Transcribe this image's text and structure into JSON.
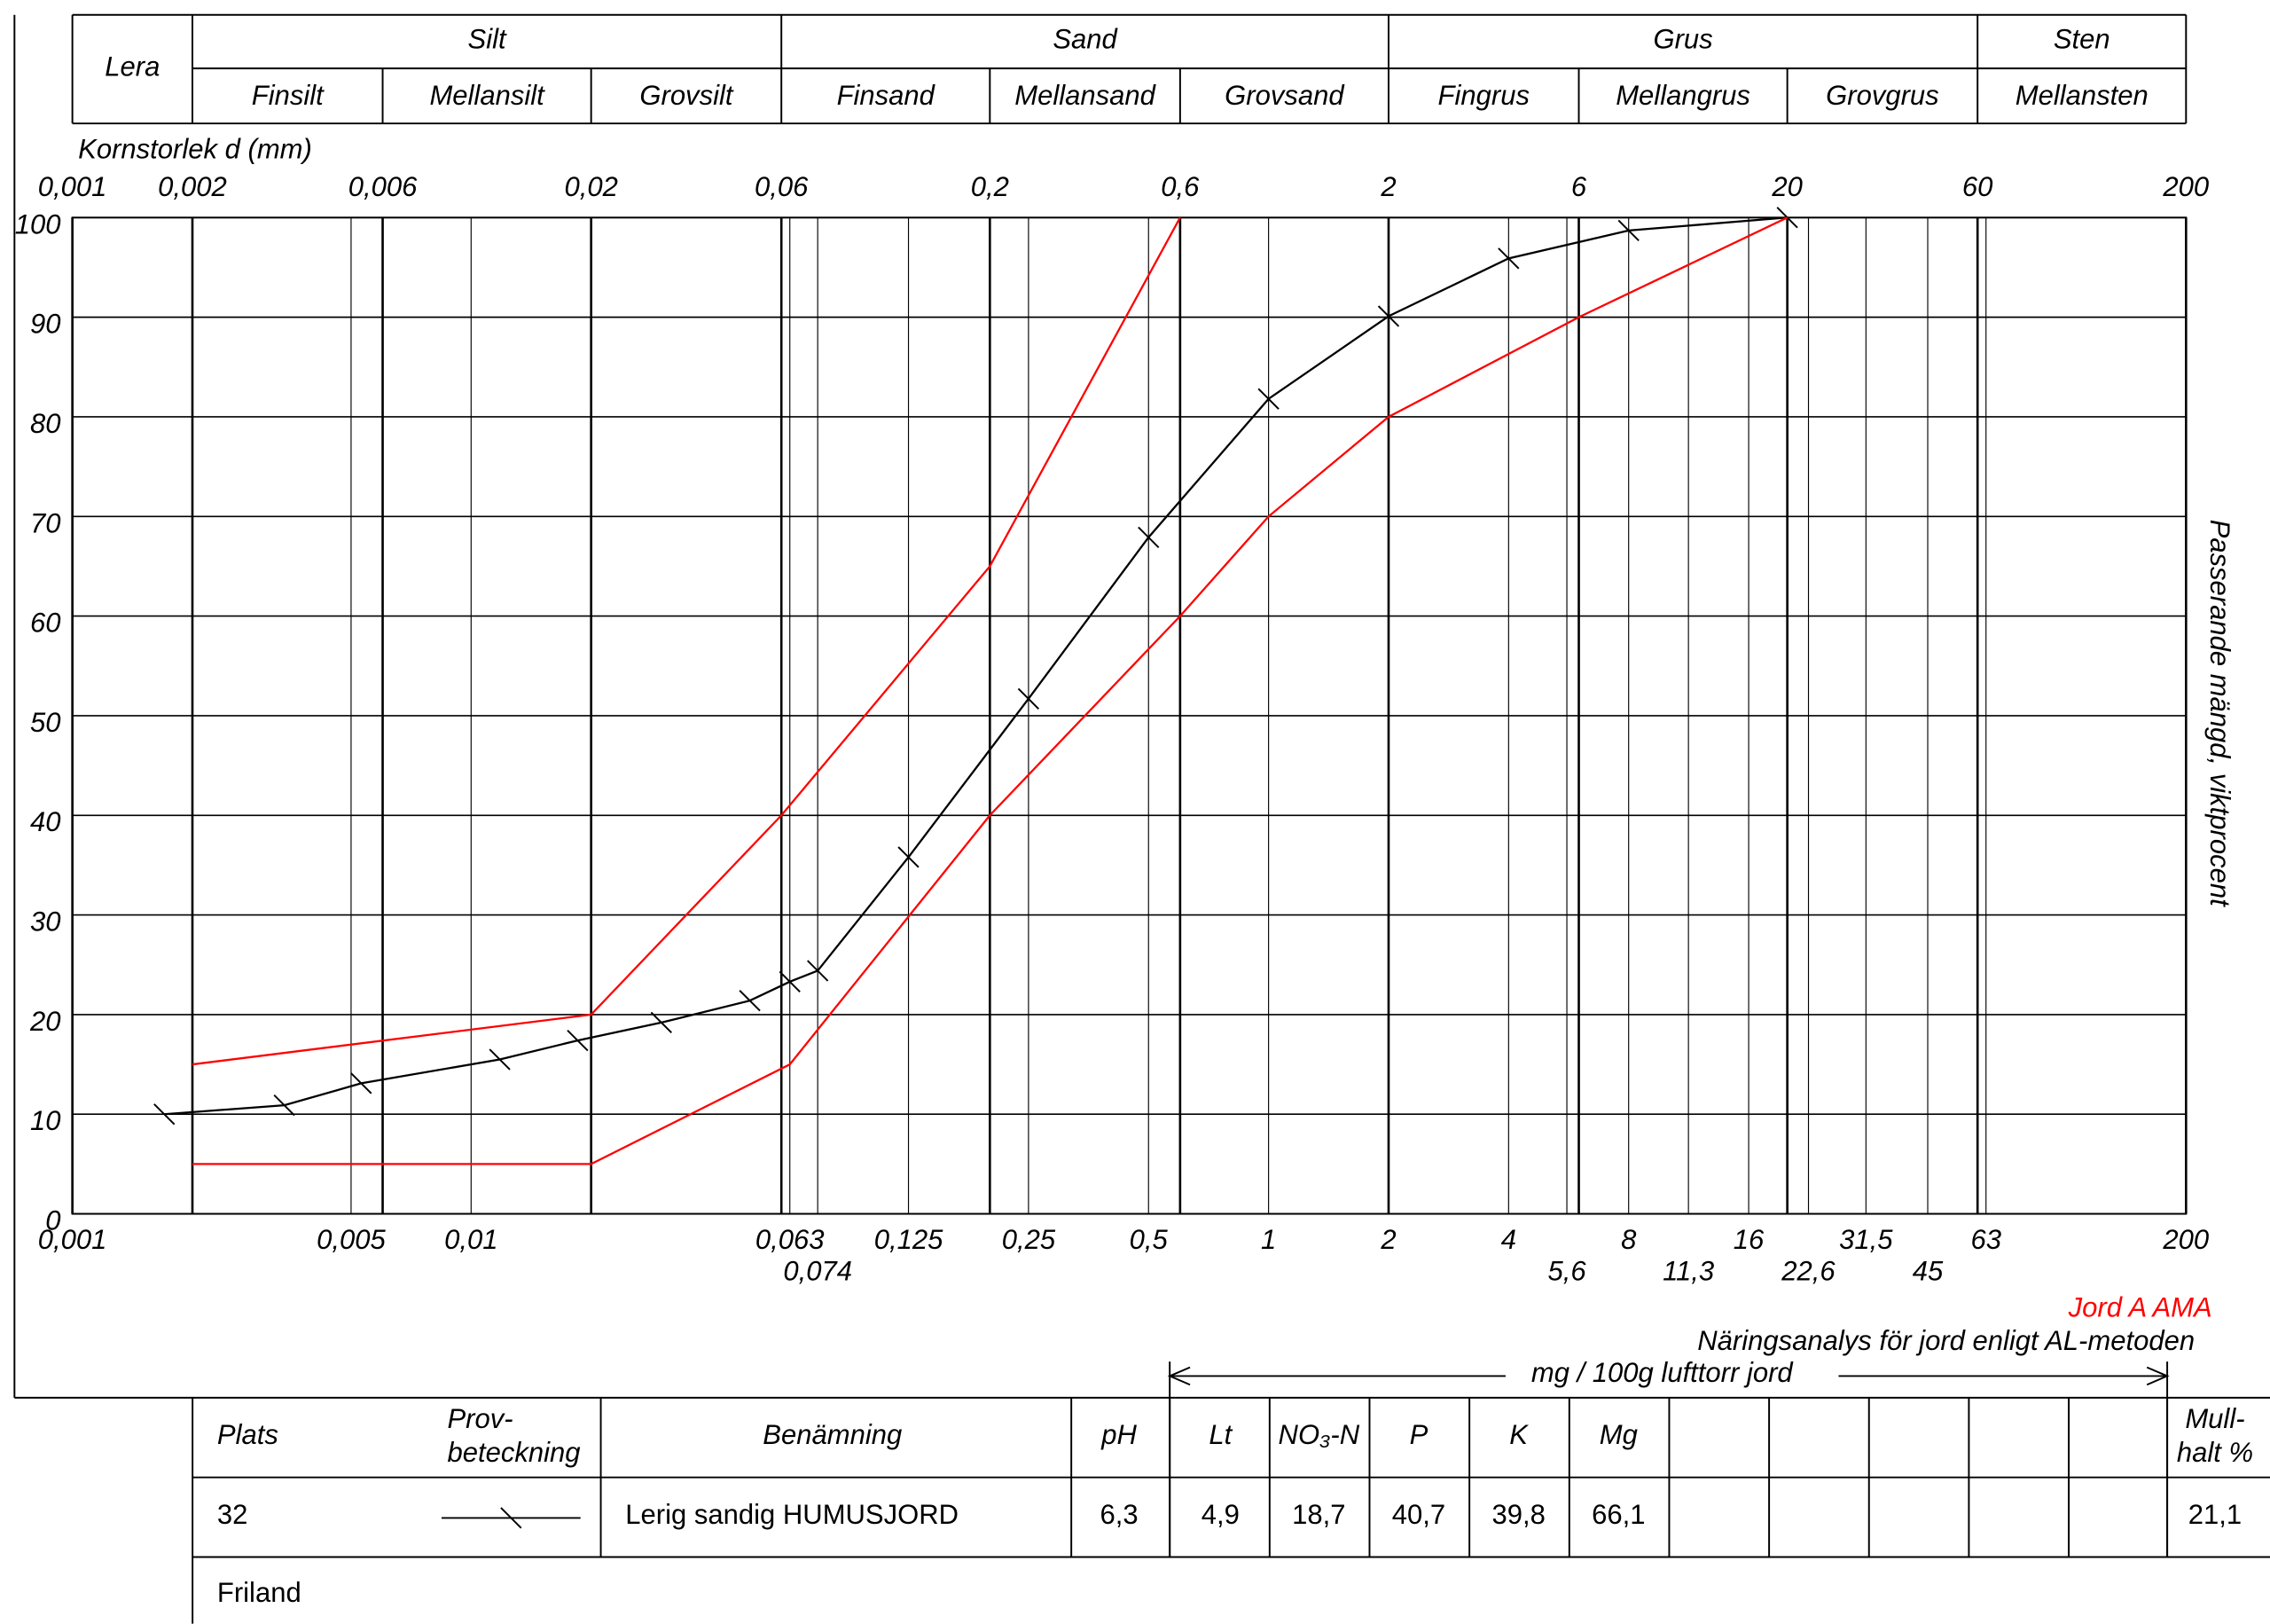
{
  "chart_data": {
    "type": "line",
    "xscale": "log",
    "xlabel": "Kornstorlek d (mm)",
    "ylabel": "Passerande mängd, viktprocent",
    "xlim": [
      0.001,
      200
    ],
    "ylim": [
      0,
      100
    ],
    "yticks": [
      0,
      10,
      20,
      30,
      40,
      50,
      60,
      70,
      80,
      90,
      100
    ],
    "xticks_top": [
      {
        "value": 0.001,
        "label": "0,001"
      },
      {
        "value": 0.002,
        "label": "0,002"
      },
      {
        "value": 0.006,
        "label": "0,006"
      },
      {
        "value": 0.02,
        "label": "0,02"
      },
      {
        "value": 0.06,
        "label": "0,06"
      },
      {
        "value": 0.2,
        "label": "0,2"
      },
      {
        "value": 0.6,
        "label": "0,6"
      },
      2,
      6,
      20,
      60,
      200
    ],
    "xticks": [
      {
        "value": 0.001,
        "label": "0,001"
      },
      {
        "value": 0.005,
        "label": "0,005"
      },
      {
        "value": 0.01,
        "label": "0,01"
      },
      {
        "value": 0.063,
        "label": "0,063"
      },
      {
        "value": 0.074,
        "label": "0,074"
      },
      {
        "value": 0.125,
        "label": "0,125"
      },
      {
        "value": 0.25,
        "label": "0,25"
      },
      {
        "value": 0.5,
        "label": "0,5"
      },
      1,
      2,
      4,
      {
        "value": 5.6,
        "label": "5,6"
      },
      8,
      {
        "value": 11.3,
        "label": "11,3"
      },
      16,
      {
        "value": 22.6,
        "label": "22,6"
      },
      {
        "value": 31.5,
        "label": "31,5"
      },
      45,
      63,
      200
    ],
    "grid": true,
    "series": [
      {
        "color": "#000000",
        "marker": "tick",
        "x": [
          0.0017,
          0.0034,
          0.0053,
          0.0118,
          0.0185,
          0.03,
          0.05,
          0.063,
          0.074,
          0.125,
          0.25,
          0.5,
          1,
          2,
          4,
          8,
          20
        ],
        "values": [
          10,
          10.9,
          13.1,
          15.5,
          17.4,
          19.2,
          21.4,
          23.3,
          24.4,
          35.8,
          51.7,
          67.9,
          81.8,
          90.1,
          95.9,
          98.7,
          100
        ]
      },
      {
        "name": "Jord A AMA",
        "color": "#ff0000",
        "upper": {
          "x": [
            0.002,
            0.02,
            0.06,
            0.2,
            0.6
          ],
          "values": [
            15,
            20,
            40,
            65,
            100
          ]
        },
        "lower": {
          "x": [
            0.002,
            0.02,
            0.063,
            0.2,
            0.6,
            1,
            2,
            6,
            20
          ],
          "values": [
            5,
            5,
            15,
            40,
            60,
            70,
            80,
            90,
            100
          ]
        }
      }
    ]
  },
  "header": {
    "lera": "Lera",
    "groups": [
      {
        "name": "Silt",
        "sub": [
          "Finsilt",
          "Mellansilt",
          "Grovsilt"
        ]
      },
      {
        "name": "Sand",
        "sub": [
          "Finsand",
          "Mellansand",
          "Grovsand"
        ]
      },
      {
        "name": "Grus",
        "sub": [
          "Fingrus",
          "Mellangrus",
          "Grovgrus"
        ]
      },
      {
        "name": "Sten",
        "sub": [
          "Mellansten"
        ]
      }
    ]
  },
  "analysis": {
    "title": "Näringsanalys för jord enligt AL-metoden",
    "unit": "mg / 100g lufttorr jord"
  },
  "table": {
    "header": [
      "Plats",
      [
        "Prov-",
        "beteckning"
      ],
      "Benämning",
      "pH",
      "Lt",
      "NO₃-N",
      "P",
      "K",
      "Mg",
      [
        "Mull-",
        "halt %"
      ]
    ],
    "row": [
      "32",
      "Lerig sandig HUMUSJORD",
      "6,3",
      "4,9",
      "18,7",
      "40,7",
      "39,8",
      "66,1",
      "21,1"
    ],
    "note": "Friland"
  }
}
